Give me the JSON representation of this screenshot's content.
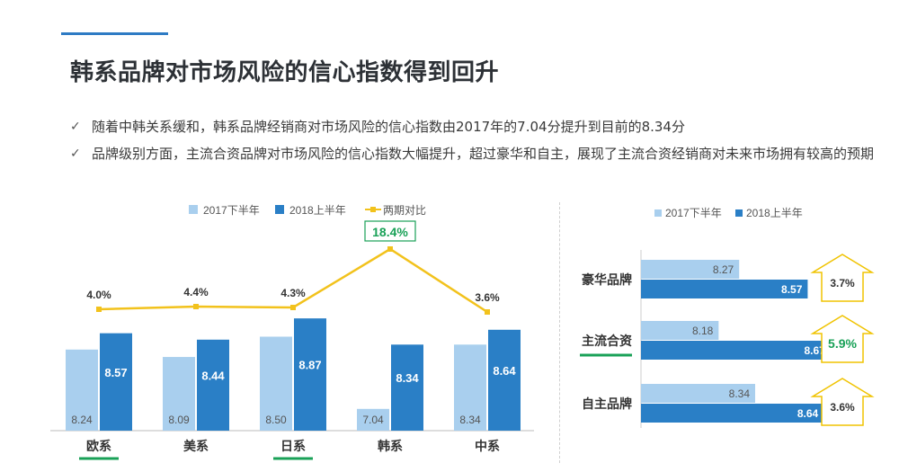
{
  "title": "韩系品牌对市场风险的信心指数得到回升",
  "bullets": [
    "随着中韩关系缓和，韩系品牌经销商对市场风险的信心指数由2017年的7.04分提升到目前的8.34分",
    "品牌级别方面，主流合资品牌对市场风险的信心指数大幅提升，超过豪华和自主，展现了主流合资经销商对未来市场拥有较高的预期"
  ],
  "colors": {
    "light": "#a9cfee",
    "dark": "#2a7fc6",
    "line": "#f2c21c",
    "green": "#19a157",
    "text": "#333333"
  },
  "chart_data": [
    {
      "type": "bar",
      "categories": [
        "欧系",
        "美系",
        "日系",
        "韩系",
        "中系"
      ],
      "series": [
        {
          "name": "2017下半年",
          "values": [
            8.24,
            8.09,
            8.5,
            7.04,
            8.34
          ]
        },
        {
          "name": "2018上半年",
          "values": [
            8.57,
            8.44,
            8.87,
            8.34,
            8.64
          ]
        },
        {
          "name": "两期对比",
          "type": "line",
          "values": [
            "4.0%",
            "4.4%",
            "4.3%",
            "18.4%",
            "3.6%"
          ]
        }
      ],
      "highlight_categories": [
        "欧系",
        "日系"
      ],
      "boxed_labels": [
        "18.4%"
      ],
      "legend": "top"
    },
    {
      "type": "bar",
      "orientation": "horizontal",
      "categories": [
        "豪华品牌",
        "主流合资",
        "自主品牌"
      ],
      "series": [
        {
          "name": "2017下半年",
          "values": [
            8.27,
            8.18,
            8.34
          ]
        },
        {
          "name": "2018上半年",
          "values": [
            8.57,
            8.67,
            8.64
          ]
        }
      ],
      "change_labels": [
        "3.7%",
        "5.9%",
        "3.6%"
      ],
      "highlight_categories": [
        "主流合资"
      ],
      "legend": "top"
    }
  ]
}
